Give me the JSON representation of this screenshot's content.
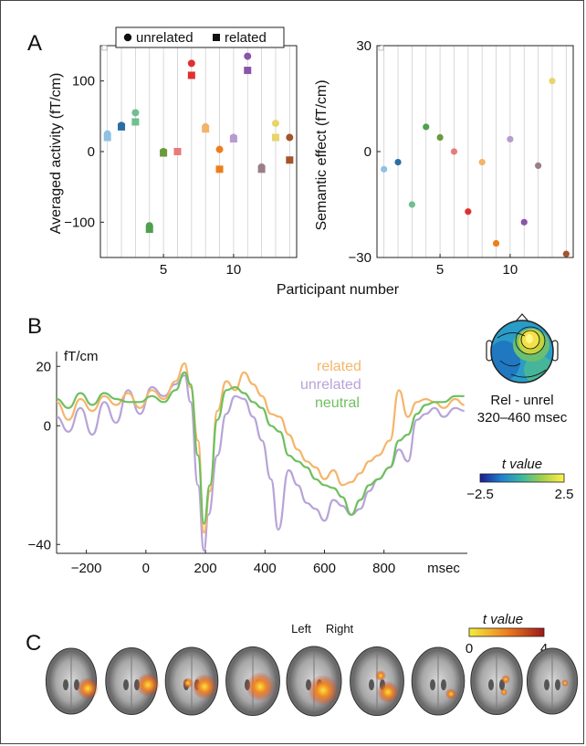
{
  "panels": {
    "a": "A",
    "b": "B",
    "c": "C"
  },
  "shared": {
    "xlabel": "Participant number"
  },
  "colors": {
    "participants": [
      "#8fc1e3",
      "#2b6ea3",
      "#6fbf8f",
      "#4da04d",
      "#6a9a3c",
      "#e77b7b",
      "#e03030",
      "#f3b36a",
      "#ef7d1c",
      "#b79ccf",
      "#8a55a8",
      "#9a7e8a",
      "#e8d56b",
      "#a3542a"
    ],
    "related": "#f5b56b",
    "unrelated": "#b7a4d8",
    "neutral": "#6fbf5f"
  },
  "legend_a": {
    "unrelated": "unrelated",
    "related": "related"
  },
  "panel_b": {
    "unit": "fT/cm",
    "x_unit": "msec",
    "legend": {
      "related": "related",
      "unrelated": "unrelated",
      "neutral": "neutral"
    },
    "topo_label1": "Rel - unrel",
    "topo_label2": "320–460 msec",
    "colorbar_label": "t value",
    "colorbar_min": "−2.5",
    "colorbar_max": "2.5"
  },
  "panel_c": {
    "left_label": "Left",
    "right_label": "Right",
    "colorbar_label": "t value",
    "colorbar_min": "0",
    "colorbar_max": "4"
  },
  "chart_data": [
    {
      "type": "scatter",
      "ylabel": "Averaged activity (fT/cm)",
      "xlabel": "Participant number",
      "xlim": [
        0.5,
        14.5
      ],
      "ylim": [
        -150,
        150
      ],
      "xticks": [
        5,
        10
      ],
      "yticks": [
        100,
        0,
        -100
      ],
      "ytick_labels": [
        "100",
        "0",
        "−100"
      ],
      "series": [
        {
          "name": "unrelated",
          "marker": "circle",
          "x": [
            1,
            2,
            3,
            4,
            5,
            6,
            7,
            8,
            9,
            10,
            11,
            12,
            13,
            14
          ],
          "values": [
            25,
            37,
            55,
            -105,
            0,
            0,
            125,
            35,
            3,
            20,
            135,
            -22,
            40,
            20
          ]
        },
        {
          "name": "related",
          "marker": "square",
          "x": [
            1,
            2,
            3,
            4,
            5,
            6,
            7,
            8,
            9,
            10,
            11,
            12,
            13,
            14
          ],
          "values": [
            20,
            35,
            42,
            -110,
            -2,
            0,
            108,
            32,
            -25,
            18,
            115,
            -25,
            20,
            -12
          ]
        }
      ]
    },
    {
      "type": "scatter",
      "ylabel": "Semantic effect (fT/cm)",
      "xlabel": "Participant number",
      "xlim": [
        0.5,
        14.5
      ],
      "ylim": [
        -30,
        30
      ],
      "xticks": [
        5,
        10
      ],
      "yticks": [
        30,
        0,
        -30
      ],
      "ytick_labels": [
        "30",
        "0",
        "−30"
      ],
      "x": [
        1,
        2,
        3,
        4,
        5,
        6,
        7,
        8,
        9,
        10,
        11,
        12,
        13,
        14
      ],
      "values": [
        -5,
        -3,
        -15,
        7,
        4,
        0,
        -17,
        -3,
        -26,
        3.5,
        -20,
        -4,
        20,
        -29
      ]
    },
    {
      "type": "line",
      "xlim": [
        -300,
        1080
      ],
      "ylim": [
        -43,
        25
      ],
      "xticks": [
        -200,
        0,
        200,
        400,
        600,
        800
      ],
      "xtick_labels": [
        "−200",
        "0",
        "200",
        "400",
        "600",
        "800"
      ],
      "yticks": [
        20,
        0,
        -40
      ],
      "ytick_labels": [
        "20",
        "0",
        "−40"
      ],
      "series": [
        {
          "name": "related",
          "x": [
            -300,
            -260,
            -220,
            -180,
            -140,
            -100,
            -60,
            -20,
            20,
            60,
            100,
            130,
            150,
            175,
            195,
            215,
            240,
            270,
            300,
            330,
            360,
            390,
            420,
            450,
            480,
            510,
            540,
            570,
            600,
            630,
            660,
            690,
            720,
            750,
            780,
            820,
            850,
            880,
            910,
            940,
            970,
            1000,
            1040,
            1070
          ],
          "values": [
            8,
            2,
            9,
            5,
            10,
            7,
            11,
            6,
            12,
            9,
            15,
            21,
            13,
            -5,
            -36,
            -22,
            5,
            15,
            12,
            18,
            14,
            10,
            4,
            3,
            -3,
            -8,
            -12,
            -14,
            -18,
            -15,
            -20,
            -19,
            -16,
            -12,
            -10,
            -5,
            12,
            3,
            8,
            9,
            8,
            6,
            9,
            7
          ]
        },
        {
          "name": "unrelated",
          "x": [
            -300,
            -260,
            -220,
            -180,
            -140,
            -100,
            -60,
            -20,
            20,
            60,
            100,
            130,
            150,
            175,
            195,
            210,
            240,
            270,
            300,
            330,
            360,
            390,
            420,
            445,
            480,
            510,
            540,
            570,
            600,
            630,
            660,
            690,
            720,
            750,
            780,
            820,
            850,
            880,
            910,
            940,
            970,
            1000,
            1040,
            1070
          ],
          "values": [
            3,
            -2,
            6,
            -3,
            8,
            1,
            12,
            4,
            13,
            10,
            14,
            17,
            8,
            -20,
            -42,
            -30,
            -10,
            4,
            10,
            9,
            3,
            -5,
            -18,
            -35,
            -15,
            -20,
            -26,
            -28,
            -32,
            -25,
            -27,
            -30,
            -28,
            -22,
            -18,
            -14,
            -8,
            -12,
            2,
            4,
            6,
            3,
            6,
            5
          ]
        },
        {
          "name": "neutral",
          "x": [
            -300,
            -260,
            -220,
            -180,
            -140,
            -100,
            -60,
            -20,
            20,
            60,
            100,
            130,
            150,
            175,
            195,
            215,
            240,
            270,
            300,
            330,
            360,
            390,
            420,
            450,
            480,
            510,
            540,
            570,
            600,
            630,
            660,
            690,
            720,
            750,
            780,
            820,
            850,
            880,
            910,
            940,
            970,
            1000,
            1040,
            1070
          ],
          "values": [
            9,
            6,
            11,
            7,
            11,
            9,
            8,
            8,
            10,
            8,
            12,
            18,
            14,
            -10,
            -33,
            -20,
            2,
            12,
            13,
            11,
            8,
            6,
            0,
            -2,
            -10,
            -12,
            -14,
            -18,
            -20,
            -21,
            -24,
            -30,
            -25,
            -20,
            -18,
            -14,
            -5,
            -3,
            4,
            7,
            8,
            8,
            10,
            10
          ]
        }
      ]
    }
  ]
}
